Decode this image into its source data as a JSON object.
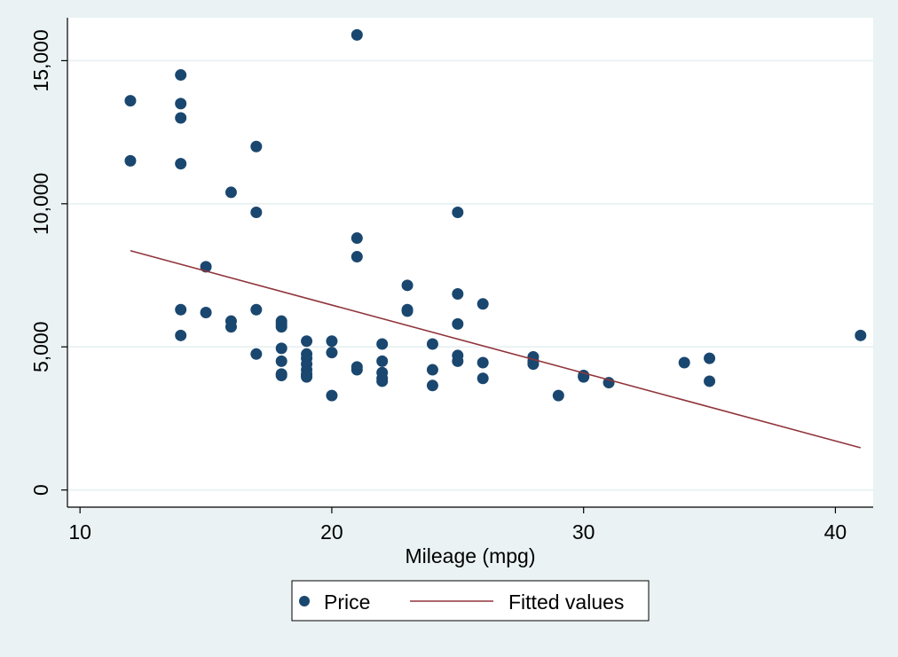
{
  "chart_data": {
    "type": "scatter",
    "xlabel": "Mileage (mpg)",
    "ylabel": "",
    "xlim": [
      9.5,
      41.5
    ],
    "ylim": [
      -600,
      16500
    ],
    "xticks": [
      10,
      20,
      30,
      40
    ],
    "yticks": [
      0,
      5000,
      10000,
      15000
    ],
    "ytick_labels": [
      "0",
      "5,000",
      "10,000",
      "15,000"
    ],
    "grid": "horizontal",
    "legend_position": "bottom",
    "colors": {
      "points": "#1a476f",
      "fit": "#90353b",
      "background": "#eaf2f3",
      "plot": "#ffffff",
      "grid": "#eaf2f3"
    },
    "series": [
      {
        "name": "Price",
        "kind": "scatter",
        "x": [
          12,
          12,
          14,
          14,
          14,
          14,
          14,
          14,
          15,
          15,
          16,
          16,
          16,
          17,
          17,
          17,
          17,
          18,
          18,
          18,
          18,
          18,
          18,
          18,
          19,
          19,
          19,
          19,
          19,
          19,
          19,
          19,
          20,
          20,
          20,
          21,
          21,
          21,
          21,
          21,
          22,
          22,
          22,
          22,
          22,
          23,
          23,
          23,
          24,
          24,
          24,
          25,
          25,
          25,
          25,
          25,
          26,
          26,
          26,
          28,
          28,
          28,
          29,
          30,
          30,
          31,
          34,
          35,
          35,
          41
        ],
        "y": [
          13600,
          11500,
          14500,
          13500,
          13000,
          11400,
          6300,
          5400,
          7800,
          6200,
          10400,
          5900,
          5700,
          12000,
          9700,
          6300,
          4750,
          5900,
          5800,
          5700,
          4950,
          4500,
          4050,
          4000,
          5200,
          4750,
          4600,
          4400,
          4200,
          4050,
          3950,
          4000,
          5200,
          4800,
          3300,
          15900,
          8800,
          8150,
          4300,
          4200,
          5100,
          4500,
          4100,
          3900,
          3800,
          7150,
          6300,
          6250,
          5100,
          4200,
          3650,
          9700,
          6850,
          5800,
          4700,
          4500,
          6500,
          4450,
          3900,
          4650,
          4500,
          4400,
          3300,
          4000,
          3950,
          3750,
          4450,
          4600,
          3800,
          5400
        ]
      },
      {
        "name": "Fitted values",
        "kind": "line",
        "x": [
          12,
          41
        ],
        "y": [
          8360,
          1475
        ]
      }
    ]
  }
}
